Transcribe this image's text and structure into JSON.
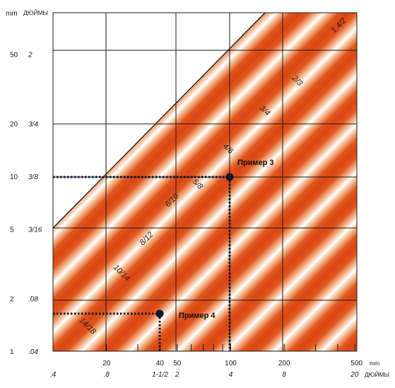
{
  "chart_data": {
    "type": "area",
    "title": "",
    "axis_units": {
      "y_mm": "mm",
      "y_inch": "ДЮЙМЫ",
      "x_mm": "mm",
      "x_inch": "ДЮЙМЫ"
    },
    "x_axis": {
      "scale": "log",
      "range_mm": [
        10,
        500
      ],
      "tick_labels_mm": [
        {
          "value": 20,
          "label": "20"
        },
        {
          "value": 40,
          "label": "40"
        },
        {
          "value": 50,
          "label": "50"
        },
        {
          "value": 100,
          "label": "100"
        },
        {
          "value": 200,
          "label": "200"
        },
        {
          "value": 500,
          "label": "500"
        }
      ],
      "tick_labels_inch": [
        {
          "value": 10,
          "label": ".4"
        },
        {
          "value": 20,
          "label": ".8"
        },
        {
          "value": 40,
          "label": "1-1/2"
        },
        {
          "value": 50,
          "label": "2"
        },
        {
          "value": 100,
          "label": "4"
        },
        {
          "value": 200,
          "label": "8"
        },
        {
          "value": 500,
          "label": "20"
        }
      ],
      "minor_ticks_mm": [
        30,
        60,
        70,
        80,
        90,
        300,
        400
      ]
    },
    "y_axis": {
      "scale": "log",
      "range_mm": [
        1,
        100
      ],
      "tick_labels_mm": [
        {
          "value": 1,
          "label": "1"
        },
        {
          "value": 2,
          "label": "2"
        },
        {
          "value": 5,
          "label": "5"
        },
        {
          "value": 10,
          "label": "10"
        },
        {
          "value": 20,
          "label": "20"
        },
        {
          "value": 50,
          "label": "50"
        }
      ],
      "tick_labels_inch": [
        {
          "value": 1,
          "label": ".04"
        },
        {
          "value": 2,
          "label": ".08"
        },
        {
          "value": 5,
          "label": "3/16"
        },
        {
          "value": 10,
          "label": "3/8"
        },
        {
          "value": 20,
          "label": "3/4"
        },
        {
          "value": 50,
          "label": "2"
        }
      ]
    },
    "grid": true,
    "bands": [
      {
        "label": "1.4/2"
      },
      {
        "label": "2/3"
      },
      {
        "label": "3/4"
      },
      {
        "label": "4/6"
      },
      {
        "label": "5/8"
      },
      {
        "label": "6/10"
      },
      {
        "label": "8/12"
      },
      {
        "label": "10/14"
      },
      {
        "label": "14/18"
      }
    ],
    "annotations": [
      {
        "label": "Пример 3",
        "x": 100,
        "y": 10
      },
      {
        "label": "Пример 4",
        "x": 40,
        "y": 1.6
      }
    ]
  }
}
